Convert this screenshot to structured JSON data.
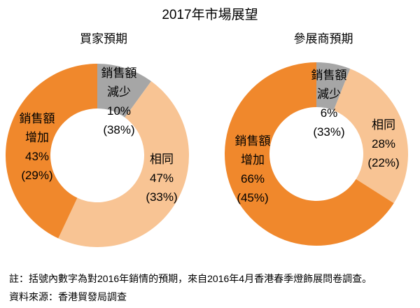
{
  "title": "2017年市場展望",
  "footer": {
    "note": "註：括號內數字為對2016年銷情的預期，來自2016年4月香港春季燈飾展問卷調查。",
    "source": "資料來源：香港貿發局調查"
  },
  "colors": {
    "increase": "#F0882C",
    "same": "#F8C494",
    "decrease": "#A6A6A6",
    "text": "#000000",
    "background": "#FFFFFF"
  },
  "chart_data": [
    {
      "type": "pie",
      "variant": "donut",
      "title": "買家預期",
      "unit": "%",
      "start_angle_deg_from_top": 0,
      "direction": "clockwise",
      "segments": [
        {
          "name": "decrease",
          "label": "銷售額減少",
          "value": 10,
          "value_prev": 38,
          "color": "#A6A6A6",
          "lines": [
            "銷售額",
            "減少",
            "10%",
            "(38%)"
          ]
        },
        {
          "name": "same",
          "label": "相同",
          "value": 47,
          "value_prev": 33,
          "color": "#F8C494",
          "lines": [
            "相同",
            "47%",
            "(33%)"
          ]
        },
        {
          "name": "increase",
          "label": "銷售額增加",
          "value": 43,
          "value_prev": 29,
          "color": "#F0882C",
          "lines": [
            "銷售額",
            "增加",
            "43%",
            "(29%)"
          ]
        }
      ]
    },
    {
      "type": "pie",
      "variant": "donut",
      "title": "參展商預期",
      "unit": "%",
      "start_angle_deg_from_top": 0,
      "direction": "clockwise",
      "segments": [
        {
          "name": "decrease",
          "label": "銷售額減少",
          "value": 6,
          "value_prev": 33,
          "color": "#A6A6A6",
          "lines": [
            "銷售額",
            "減少",
            "6%",
            "(33%)"
          ]
        },
        {
          "name": "same",
          "label": "相同",
          "value": 28,
          "value_prev": 22,
          "color": "#F8C494",
          "lines": [
            "相同",
            "28%",
            "(22%)"
          ]
        },
        {
          "name": "increase",
          "label": "銷售額增加",
          "value": 66,
          "value_prev": 45,
          "color": "#F0882C",
          "lines": [
            "銷售額",
            "增加",
            "66%",
            "(45%)"
          ]
        }
      ]
    }
  ]
}
